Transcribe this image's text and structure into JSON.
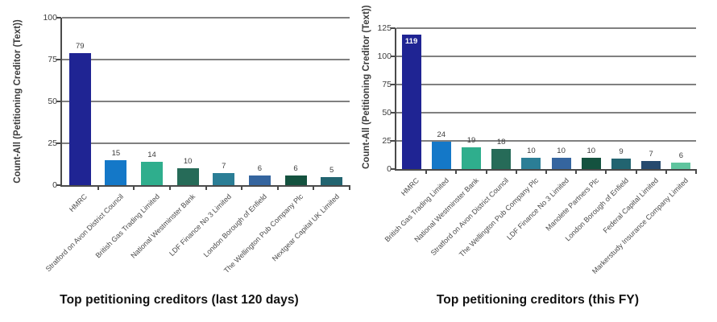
{
  "colors": {
    "background": "#ffffff",
    "grid": "#808080",
    "axis": "#4a4a4a",
    "text": "#3d3d3d",
    "title": "#111111",
    "inside_value_label": "#ffffff"
  },
  "chart_data": [
    {
      "type": "bar",
      "title": "Top petitioning creditors (last 120 days)",
      "ylabel": "Count-All (Petitioning Creditor (Text))",
      "xlabel": "",
      "ylim": [
        0,
        100
      ],
      "yticks": [
        0,
        25,
        50,
        75,
        100
      ],
      "grid": true,
      "legend": false,
      "categories": [
        "HMRC",
        "Stratford on Avon District Council",
        "British Gas Trading Limited",
        "National Westminster Bank",
        "LDF Finance No 3 Limited",
        "London Borough of Enfield",
        "The Wellington Pub Company Plc",
        "Nextgear Capital UK Limited"
      ],
      "values": [
        79,
        15,
        14,
        10,
        7,
        6,
        6,
        5
      ],
      "bar_colors": [
        "#1f2493",
        "#1478c8",
        "#2fae8d",
        "#266b58",
        "#2b7e96",
        "#35659f",
        "#14523f",
        "#226470"
      ],
      "label_inside": [
        false,
        false,
        false,
        false,
        false,
        false,
        false,
        false
      ]
    },
    {
      "type": "bar",
      "title": "Top petitioning creditors (this FY)",
      "ylabel": "Count-All (Petitioning Creditor (Text))",
      "xlabel": "",
      "ylim": [
        0,
        125
      ],
      "yticks": [
        0,
        25,
        50,
        75,
        100,
        125
      ],
      "grid": true,
      "legend": false,
      "categories": [
        "HMRC",
        "British Gas Trading Limited",
        "National Westminster Bank",
        "Stratford on Avon District Council",
        "The Wellington Pub Company Plc",
        "LDF Finance No 3 Limited",
        "Manolete Partners Plc",
        "London Borough of Enfield",
        "Federal Capital Limited",
        "Markerstudy Insurance Company Limited"
      ],
      "values": [
        119,
        24,
        19,
        18,
        10,
        10,
        10,
        9,
        7,
        6
      ],
      "bar_colors": [
        "#1f2493",
        "#1478c8",
        "#2fae8d",
        "#266b58",
        "#2b7e96",
        "#35659f",
        "#14523f",
        "#226470",
        "#264a6e",
        "#5fc49e"
      ],
      "label_inside": [
        true,
        false,
        false,
        false,
        false,
        false,
        false,
        false,
        false,
        false
      ]
    }
  ]
}
